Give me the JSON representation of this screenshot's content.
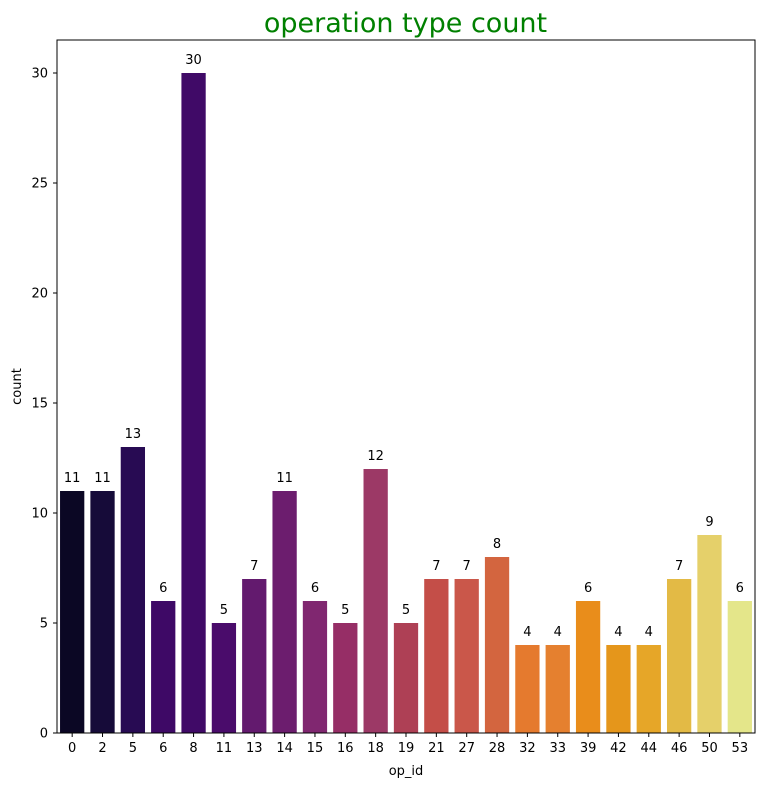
{
  "chart_data": {
    "type": "bar",
    "title": "operation type count",
    "title_color": "#008000",
    "xlabel": "op_id",
    "ylabel": "count",
    "ylim": [
      0,
      31.5
    ],
    "yticks": [
      0,
      5,
      10,
      15,
      20,
      25,
      30
    ],
    "grid": false,
    "legend": "none",
    "categories": [
      "0",
      "2",
      "5",
      "6",
      "8",
      "11",
      "13",
      "14",
      "15",
      "16",
      "18",
      "19",
      "21",
      "27",
      "28",
      "32",
      "33",
      "39",
      "42",
      "44",
      "46",
      "50",
      "53"
    ],
    "values": [
      11,
      11,
      13,
      6,
      30,
      5,
      7,
      11,
      6,
      5,
      12,
      5,
      7,
      7,
      8,
      4,
      4,
      6,
      4,
      4,
      7,
      9,
      6
    ],
    "colors": [
      "#0b0724",
      "#160b39",
      "#280b53",
      "#3e0966",
      "#400a67",
      "#4a0c6b",
      "#631a6e",
      "#6c1d6e",
      "#802770",
      "#962e66",
      "#9c3966",
      "#ae4055",
      "#c44e48",
      "#ca574a",
      "#d3653f",
      "#e57a2e",
      "#e5802f",
      "#e98d1b",
      "#e5961b",
      "#e6a628",
      "#e3ba45",
      "#e5d06a",
      "#e4e68a"
    ]
  }
}
